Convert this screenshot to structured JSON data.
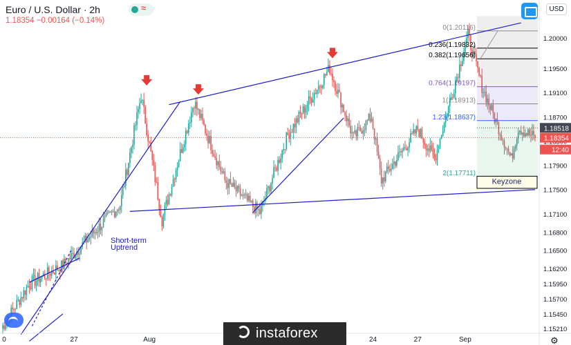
{
  "symbol": {
    "title": "Euro / U.S. Dollar · 2h",
    "price": "1.18354",
    "change": "−0.00164",
    "change_pct": "(−0.14%)"
  },
  "toolbar": {
    "currency_label": "USD",
    "replay_icon": "wave-icon",
    "status_icon": "green-dot-icon",
    "fullscreen_icon": "screen-icon",
    "settings_icon": "gear-icon"
  },
  "colors": {
    "bull": "#26a69a",
    "bear": "#ef5350",
    "trendline": "#1a1acd",
    "fib": "#7e57c2",
    "background": "#ffffff"
  },
  "watermark": {
    "text": "instaforex"
  },
  "chart_data": {
    "type": "candlestick",
    "instrument": "EUR/USD",
    "timeframe": "2h",
    "y_axis": {
      "range": [
        1.1519,
        1.2036
      ],
      "ticks": [
        "1.20000",
        "1.19500",
        "1.19100",
        "1.18700",
        "1.18300",
        "1.17900",
        "1.17500",
        "1.17100",
        "1.16800",
        "1.16500",
        "1.16200",
        "1.15950",
        "1.15700",
        "1.15450",
        "1.15210"
      ]
    },
    "x_axis": {
      "ticks": [
        {
          "label": "0",
          "idx": 0
        },
        {
          "label": "27",
          "idx": 52
        },
        {
          "label": "Aug",
          "idx": 106
        },
        {
          "label": "17",
          "idx": 240
        },
        {
          "label": "24",
          "idx": 266
        },
        {
          "label": "27",
          "idx": 298
        },
        {
          "label": "Sep",
          "idx": 332
        }
      ]
    },
    "price_labels": [
      {
        "text": "1.18518",
        "value": 1.18518,
        "style": "dark"
      },
      {
        "text": "1.18354",
        "value": 1.18354,
        "style": "red"
      },
      {
        "text": "12:40",
        "value": 1.1816,
        "style": "red"
      }
    ],
    "fibonacci": [
      {
        "text": "0(1.20116)",
        "value": 1.20116
      },
      {
        "text": "0.236(1.19832)",
        "value": 1.19832
      },
      {
        "text": "0.382(1.19656)",
        "value": 1.19656
      },
      {
        "text": "0.764(1.19197)",
        "value": 1.19197
      },
      {
        "text": "1(1.18913)",
        "value": 1.18913
      },
      {
        "text": "1.23(1.18637)",
        "value": 1.18637
      },
      {
        "text": "2(1.17711)",
        "value": 1.17711
      }
    ],
    "annotations": [
      {
        "text": "Short-term",
        "kind": "label"
      },
      {
        "text": "Uptrend",
        "kind": "label"
      },
      {
        "text": "Keyzone",
        "kind": "box",
        "value_top": 1.1772,
        "value_bottom": 1.1752
      }
    ],
    "key_swings": [
      {
        "idx": 0,
        "value": 1.1521
      },
      {
        "idx": 20,
        "value": 1.1595
      },
      {
        "idx": 44,
        "value": 1.1625
      },
      {
        "idx": 85,
        "value": 1.1725
      },
      {
        "idx": 100,
        "value": 1.1905
      },
      {
        "idx": 115,
        "value": 1.17
      },
      {
        "idx": 138,
        "value": 1.1895
      },
      {
        "idx": 160,
        "value": 1.1765
      },
      {
        "idx": 185,
        "value": 1.1712
      },
      {
        "idx": 205,
        "value": 1.184
      },
      {
        "idx": 235,
        "value": 1.195
      },
      {
        "idx": 252,
        "value": 1.1835
      },
      {
        "idx": 265,
        "value": 1.187
      },
      {
        "idx": 272,
        "value": 1.1765
      },
      {
        "idx": 298,
        "value": 1.185
      },
      {
        "idx": 310,
        "value": 1.18
      },
      {
        "idx": 334,
        "value": 1.2005
      },
      {
        "idx": 344,
        "value": 1.192
      },
      {
        "idx": 365,
        "value": 1.18
      },
      {
        "idx": 370,
        "value": 1.1852
      },
      {
        "idx": 382,
        "value": 1.1835
      }
    ]
  }
}
